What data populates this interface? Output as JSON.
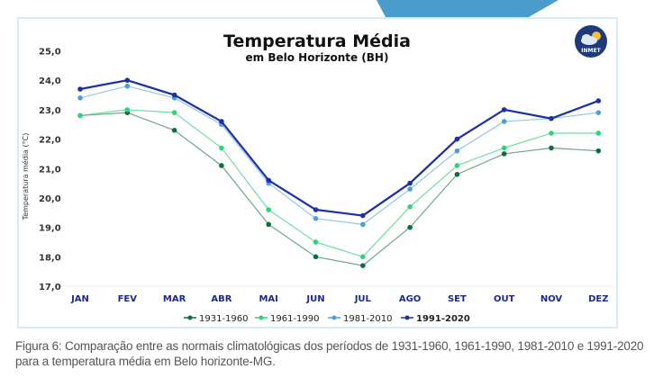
{
  "colors": {
    "banner": "#4a9ccb",
    "frame": "#d6ebf6",
    "logo_bg": "#1f3a7a",
    "series": [
      "#0b6e3e",
      "#33d17a",
      "#4aa0d8",
      "#1a2fa8"
    ]
  },
  "logo": {
    "label": "INMET",
    "icon": "cloud-sun-icon"
  },
  "chart_data": {
    "type": "line",
    "title": "Temperatura Média",
    "subtitle": "em Belo Horizonte (BH)",
    "xlabel": "",
    "ylabel": "Temperatura média (°C)",
    "ylim": [
      17.0,
      25.0
    ],
    "yticks": [
      "17,0",
      "18,0",
      "19,0",
      "20,0",
      "21,0",
      "22,0",
      "23,0",
      "24,0",
      "25,0"
    ],
    "grid": false,
    "legend_position": "bottom-center",
    "categories": [
      "JAN",
      "FEV",
      "MAR",
      "ABR",
      "MAI",
      "JUN",
      "JUL",
      "AGO",
      "SET",
      "OUT",
      "NOV",
      "DEZ"
    ],
    "series": [
      {
        "name": "1931-1960",
        "values": [
          22.8,
          22.9,
          22.3,
          21.1,
          19.1,
          18.0,
          17.7,
          19.0,
          20.8,
          21.5,
          21.7,
          21.6
        ]
      },
      {
        "name": "1961-1990",
        "values": [
          22.8,
          23.0,
          22.9,
          21.7,
          19.6,
          18.5,
          18.0,
          19.7,
          21.1,
          21.7,
          22.2,
          22.2
        ]
      },
      {
        "name": "1981-2010",
        "values": [
          23.4,
          23.8,
          23.4,
          22.5,
          20.5,
          19.3,
          19.1,
          20.3,
          21.6,
          22.6,
          22.7,
          22.9
        ]
      },
      {
        "name": "1991-2020",
        "values": [
          23.7,
          24.0,
          23.5,
          22.6,
          20.6,
          19.6,
          19.4,
          20.5,
          22.0,
          23.0,
          22.7,
          23.3
        ]
      }
    ]
  },
  "caption": "Figura 6: Comparação entre as normais climatológicas dos períodos de 1931-1960, 1961-1990, 1981-2010 e 1991-2020 para a temperatura média em Belo horizonte-MG."
}
